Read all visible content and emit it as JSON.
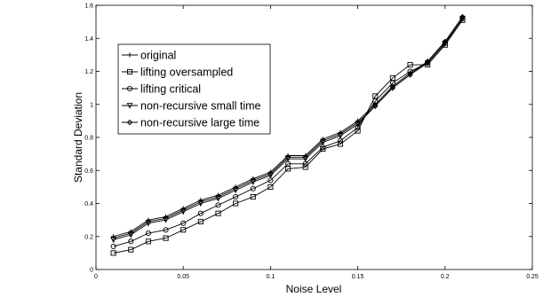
{
  "chart_data": {
    "type": "line",
    "xlabel": "Noise Level",
    "ylabel": "Standard Deviation",
    "xlim": [
      0,
      0.25
    ],
    "ylim": [
      0,
      1.6
    ],
    "xticks": [
      "0",
      "0.05",
      "0.1",
      "0.15",
      "0.2",
      "0.25"
    ],
    "yticks": [
      "0",
      "0.2",
      "0.4",
      "0.6",
      "0.8",
      "1",
      "1.2",
      "1.4",
      "1.6"
    ],
    "grid": false,
    "legend_position": "top-left",
    "x": [
      0.01,
      0.02,
      0.03,
      0.04,
      0.05,
      0.06,
      0.07,
      0.08,
      0.09,
      0.1,
      0.11,
      0.12,
      0.13,
      0.14,
      0.15,
      0.16,
      0.17,
      0.18,
      0.19,
      0.2,
      0.21
    ],
    "series": [
      {
        "name": "original",
        "marker": "plus",
        "color": "#000000",
        "values": [
          0.2,
          0.23,
          0.3,
          0.32,
          0.37,
          0.42,
          0.45,
          0.5,
          0.55,
          0.59,
          0.69,
          0.69,
          0.79,
          0.83,
          0.9,
          1.0,
          1.11,
          1.19,
          1.26,
          1.38,
          1.53
        ]
      },
      {
        "name": "lifting oversampled",
        "marker": "square",
        "color": "#000000",
        "values": [
          0.1,
          0.12,
          0.17,
          0.19,
          0.24,
          0.29,
          0.34,
          0.4,
          0.44,
          0.5,
          0.61,
          0.62,
          0.73,
          0.76,
          0.84,
          1.05,
          1.16,
          1.24,
          1.24,
          1.36,
          1.51
        ]
      },
      {
        "name": "lifting critical",
        "marker": "circle",
        "color": "#000000",
        "values": [
          0.14,
          0.17,
          0.22,
          0.24,
          0.28,
          0.34,
          0.39,
          0.44,
          0.49,
          0.54,
          0.64,
          0.64,
          0.74,
          0.78,
          0.86,
          1.02,
          1.13,
          1.2,
          1.25,
          1.37,
          1.52
        ]
      },
      {
        "name": "non-recursive small time",
        "marker": "triangle-down",
        "color": "#000000",
        "values": [
          0.18,
          0.21,
          0.28,
          0.3,
          0.35,
          0.4,
          0.43,
          0.48,
          0.53,
          0.57,
          0.67,
          0.67,
          0.77,
          0.81,
          0.88,
          0.99,
          1.1,
          1.18,
          1.25,
          1.37,
          1.52
        ]
      },
      {
        "name": "non-recursive large time",
        "marker": "diamond",
        "color": "#000000",
        "values": [
          0.19,
          0.22,
          0.29,
          0.31,
          0.36,
          0.41,
          0.44,
          0.49,
          0.54,
          0.58,
          0.68,
          0.68,
          0.78,
          0.82,
          0.89,
          0.99,
          1.1,
          1.18,
          1.26,
          1.38,
          1.53
        ]
      }
    ]
  }
}
